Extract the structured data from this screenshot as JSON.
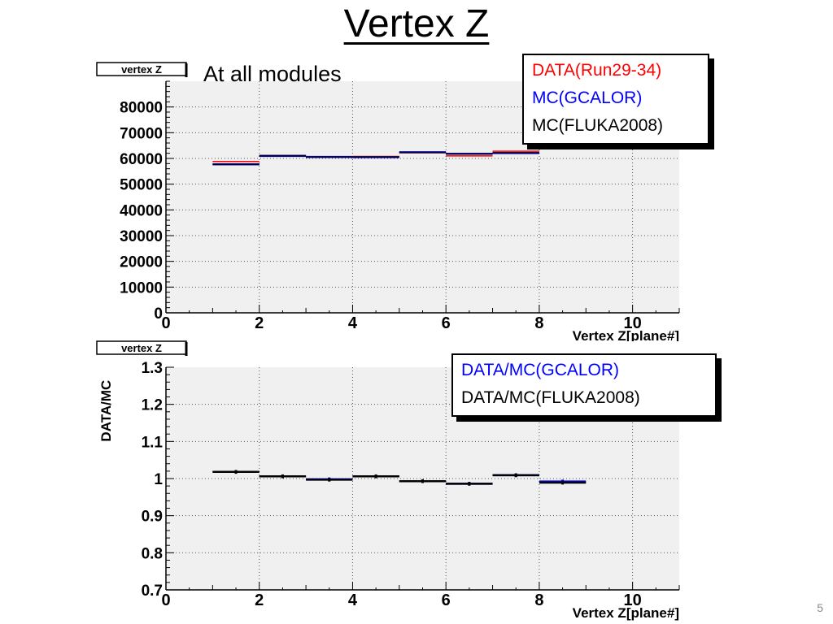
{
  "slide": {
    "title": "Vertex Z",
    "page_number": "5"
  },
  "chart_data": [
    {
      "type": "line",
      "subtitle": "At all modules",
      "stat_box": "vertex Z",
      "xlabel": "Vertex Z[plane#]",
      "ylabel": "",
      "xlim": [
        0,
        11
      ],
      "ylim": [
        0,
        90000
      ],
      "x_ticks": [
        0,
        2,
        4,
        6,
        8,
        10
      ],
      "y_ticks": [
        0,
        10000,
        20000,
        30000,
        40000,
        50000,
        60000,
        70000,
        80000
      ],
      "y_tick_labels": [
        "0",
        "10000",
        "20000",
        "30000",
        "40000",
        "50000",
        "60000",
        "70000",
        "80000"
      ],
      "grid": true,
      "legend_position": "top-right",
      "bin_edges": [
        1,
        2,
        3,
        4,
        5,
        6,
        7,
        8
      ],
      "series": [
        {
          "name": "DATA(Run29-34)",
          "color": "#ff0000",
          "values": [
            58800,
            61200,
            60500,
            60800,
            62200,
            61000,
            62800
          ]
        },
        {
          "name": "MC(GCALOR)",
          "color": "#0000ff",
          "values": [
            57700,
            61000,
            60600,
            60500,
            62400,
            61800,
            62100
          ]
        },
        {
          "name": "MC(FLUKA2008)",
          "color": "#000000",
          "values": [
            57700,
            61000,
            60500,
            60500,
            62300,
            61700,
            62200
          ]
        }
      ]
    },
    {
      "type": "line",
      "stat_box": "vertex Z",
      "xlabel": "Vertex Z[plane#]",
      "ylabel": "DATA/MC",
      "xlim": [
        0,
        11
      ],
      "ylim": [
        0.7,
        1.3
      ],
      "x_ticks": [
        0,
        2,
        4,
        6,
        8,
        10
      ],
      "y_ticks": [
        0.7,
        0.8,
        0.9,
        1.0,
        1.1,
        1.2,
        1.3
      ],
      "y_tick_labels": [
        "0.7",
        "0.8",
        "0.9",
        "1",
        "1.1",
        "1.2",
        "1.3"
      ],
      "grid": true,
      "legend_position": "top-right",
      "bin_edges": [
        1,
        2,
        3,
        4,
        5,
        6,
        7,
        8,
        9
      ],
      "series": [
        {
          "name": "DATA/MC(GCALOR)",
          "color": "#0000ff",
          "values": [
            1.018,
            1.006,
            0.998,
            1.006,
            0.993,
            0.986,
            1.009,
            0.992
          ],
          "errors": [
            0.005,
            0.005,
            0.005,
            0.005,
            0.005,
            0.005,
            0.005,
            0.005
          ]
        },
        {
          "name": "DATA/MC(FLUKA2008)",
          "color": "#000000",
          "values": [
            1.018,
            1.006,
            0.997,
            1.006,
            0.993,
            0.986,
            1.009,
            0.989
          ],
          "errors": [
            0.005,
            0.005,
            0.005,
            0.005,
            0.005,
            0.005,
            0.005,
            0.005
          ]
        }
      ]
    }
  ]
}
